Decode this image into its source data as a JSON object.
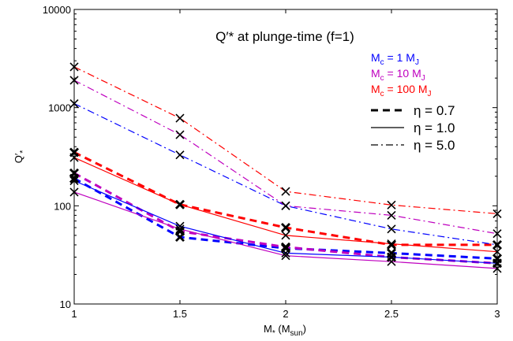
{
  "chart_data": {
    "type": "line",
    "title": "Q′* at plunge-time (f=1)",
    "xlabel": "M* (Msun)",
    "ylabel": "Q′*",
    "xlim": [
      1,
      3
    ],
    "ylim": [
      10,
      10000
    ],
    "yscale": "log",
    "x_ticks": [
      1,
      1.5,
      2,
      2.5,
      3
    ],
    "x_tick_labels": [
      "1",
      "1.5",
      "2",
      "2.5",
      "3"
    ],
    "y_ticks": [
      10,
      100,
      1000,
      10000
    ],
    "y_tick_labels": [
      "10",
      "100",
      "1000",
      "10000"
    ],
    "colors": {
      "Mc_1": "#0000ff",
      "Mc_10": "#bf00bf",
      "Mc_100": "#ff0000"
    },
    "legend_mass": [
      {
        "base": "M",
        "sub": "c",
        "mid": " = 1 M",
        "sub2": "J",
        "color": "#0000ff"
      },
      {
        "base": "M",
        "sub": "c",
        "mid": " = 10 M",
        "sub2": "J",
        "color": "#bf00bf"
      },
      {
        "base": "M",
        "sub": "c",
        "mid": " = 100 M",
        "sub2": "J",
        "color": "#ff0000"
      }
    ],
    "legend_eta": [
      {
        "label": "η = 0.7",
        "style": "dashed"
      },
      {
        "label": "η = 1.0",
        "style": "solid"
      },
      {
        "label": "η = 5.0",
        "style": "dashdot"
      }
    ],
    "series": [
      {
        "mass": "1",
        "eta": "0.7",
        "color": "#0000ff",
        "style": "dashed",
        "x": [
          1,
          1.5,
          2,
          2.5,
          3
        ],
        "y": [
          190,
          48,
          37,
          33,
          29
        ]
      },
      {
        "mass": "10",
        "eta": "0.7",
        "color": "#bf00bf",
        "style": "dashed",
        "x": [
          1,
          1.5,
          2,
          2.5,
          3
        ],
        "y": [
          215,
          55,
          38,
          30,
          26
        ]
      },
      {
        "mass": "100",
        "eta": "0.7",
        "color": "#ff0000",
        "style": "dashed",
        "x": [
          1,
          1.5,
          2,
          2.5,
          3
        ],
        "y": [
          350,
          103,
          60,
          40,
          40
        ]
      },
      {
        "mass": "1",
        "eta": "1.0",
        "color": "#0000ff",
        "style": "solid",
        "x": [
          1,
          1.5,
          2,
          2.5,
          3
        ],
        "y": [
          180,
          62,
          33,
          30,
          26
        ]
      },
      {
        "mass": "10",
        "eta": "1.0",
        "color": "#bf00bf",
        "style": "solid",
        "x": [
          1,
          1.5,
          2,
          2.5,
          3
        ],
        "y": [
          138,
          58,
          31,
          27,
          23
        ]
      },
      {
        "mass": "100",
        "eta": "1.0",
        "color": "#ff0000",
        "style": "solid",
        "x": [
          1,
          1.5,
          2,
          2.5,
          3
        ],
        "y": [
          310,
          103,
          50,
          41,
          34
        ]
      },
      {
        "mass": "1",
        "eta": "5.0",
        "color": "#0000ff",
        "style": "dashdot",
        "x": [
          1,
          1.5,
          2,
          2.5,
          3
        ],
        "y": [
          1100,
          330,
          100,
          58,
          40
        ]
      },
      {
        "mass": "10",
        "eta": "5.0",
        "color": "#bf00bf",
        "style": "dashdot",
        "x": [
          1,
          1.5,
          2,
          2.5,
          3
        ],
        "y": [
          1900,
          530,
          100,
          80,
          52
        ]
      },
      {
        "mass": "100",
        "eta": "5.0",
        "color": "#ff0000",
        "style": "dashdot",
        "x": [
          1,
          1.5,
          2,
          2.5,
          3
        ],
        "y": [
          2600,
          780,
          140,
          102,
          83
        ]
      }
    ]
  }
}
